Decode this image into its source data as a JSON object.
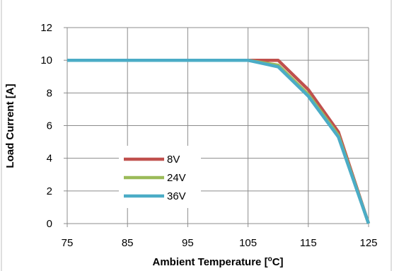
{
  "chart_data": {
    "type": "line",
    "title": "",
    "xlabel": "Ambient Temperature [",
    "xlabel_unit": "o",
    "xlabel_suffix": "C]",
    "ylabel": "Load Current [A]",
    "xlim": [
      75,
      125
    ],
    "ylim": [
      0,
      12
    ],
    "xticks": [
      75,
      85,
      95,
      105,
      115,
      125
    ],
    "yticks": [
      0,
      2,
      4,
      6,
      8,
      10,
      12
    ],
    "grid": true,
    "legend_position": "inside-left-lower",
    "series": [
      {
        "name": "8V",
        "color": "#c0504d",
        "x": [
          75,
          105,
          110,
          115,
          120,
          125
        ],
        "y": [
          10,
          10,
          10,
          8.2,
          5.6,
          0
        ]
      },
      {
        "name": "24V",
        "color": "#9bbb59",
        "x": [
          75,
          105,
          110,
          115,
          120,
          125
        ],
        "y": [
          10,
          10,
          9.7,
          7.9,
          5.4,
          0
        ]
      },
      {
        "name": "36V",
        "color": "#4bacc6",
        "x": [
          75,
          105,
          110,
          115,
          120,
          125
        ],
        "y": [
          10,
          10,
          9.6,
          7.8,
          5.3,
          0
        ]
      }
    ]
  }
}
